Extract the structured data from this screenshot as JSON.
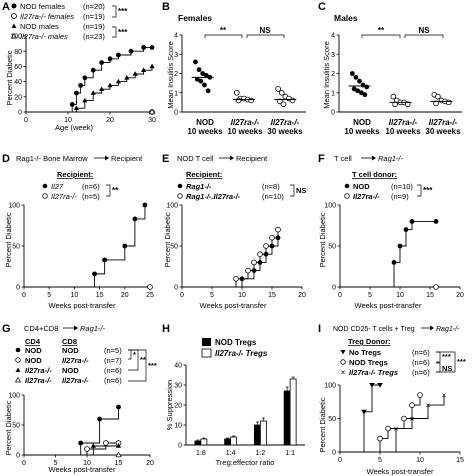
{
  "figure": {
    "panels": {
      "A": {
        "letter": "A",
        "legend": [
          "NOD females",
          "Il27ra-/- females",
          "NOD males",
          "Il27ra-/- males"
        ],
        "legend_n": [
          "(n=20)",
          "(n=19)",
          "(n=19)",
          "(n=23)"
        ],
        "sig": [
          "***",
          "***"
        ],
        "ylabel": "Percent Diabetic",
        "xlabel": "Age (week)"
      },
      "B": {
        "letter": "B",
        "title": "Females",
        "ylabel": "Mean Insulitis Score",
        "groups": [
          [
            "NOD",
            "10 weeks"
          ],
          [
            "Il27ra-/-",
            "10 weeks"
          ],
          [
            "Il27ra-/-",
            "30 weeks"
          ]
        ],
        "sig": [
          "**",
          "NS"
        ]
      },
      "C": {
        "letter": "C",
        "title": "Males",
        "ylabel": "Mean Insulitis Score",
        "groups": [
          [
            "NOD",
            "10 weeks"
          ],
          [
            "Il27ra-/-",
            "10 weeks"
          ],
          [
            "Il27ra-/-",
            "30 weeks"
          ]
        ],
        "sig": [
          "**",
          "NS"
        ]
      },
      "D": {
        "letter": "D",
        "header_a": "Rag1-/- Bone Marrow",
        "header_b": "Recipient",
        "legend_title": "Recipient:",
        "legend": [
          "Il27",
          "Il27ra-/-"
        ],
        "legend_n": [
          "(n=6)",
          "(n=5)"
        ],
        "sig": [
          "**"
        ],
        "ylabel": "Percent Diabetic",
        "xlabel": "Weeks post-transfer"
      },
      "E": {
        "letter": "E",
        "header_a": "NOD T cell",
        "header_b": "Recipient",
        "legend_title": "Recipient:",
        "legend": [
          "Rag1-/-",
          "Rag1-/-.Il27ra-/-"
        ],
        "legend_n": [
          "(n=8)",
          "(n=10)"
        ],
        "sig": [
          "NS"
        ],
        "ylabel": "Percent Diabetic",
        "xlabel": "Weeks post-transfer"
      },
      "F": {
        "letter": "F",
        "header_a": "T cell",
        "header_b": "Rag1-/-",
        "legend_title": "T cell donor:",
        "legend": [
          "NOD",
          "Il27ra-/-"
        ],
        "legend_n": [
          "(n=10)",
          "(n=9)"
        ],
        "sig": [
          "***"
        ],
        "ylabel": "Percent Diabetic",
        "xlabel": "Weeks post-transfer"
      },
      "G": {
        "letter": "G",
        "header_a": "CD4+CD8",
        "header_b": "Rag1-/-",
        "col_headers": [
          "CD4",
          "CD8"
        ],
        "rows": [
          [
            "NOD",
            "NOD"
          ],
          [
            "NOD",
            "Il27ra-/-"
          ],
          [
            "Il27ra-/-",
            "NOD"
          ],
          [
            "Il27ra-/-",
            "Il27ra-/-"
          ]
        ],
        "rows_n": [
          "(n=5)",
          "(n=7)",
          "(n=6)",
          "(n=6)"
        ],
        "sig": [
          "*",
          "**",
          "***"
        ],
        "ylabel": "Percent Diabetic",
        "xlabel": "Weeks post-transfer"
      },
      "H": {
        "letter": "H",
        "legend": [
          "NOD Tregs",
          "Il27ra-/- Tregs"
        ],
        "ylabel": "% Suppression",
        "xlabel": "Treg:effector ratio"
      },
      "I": {
        "letter": "I",
        "header_a": "NOD CD25- T cells + Treg",
        "header_b": "Rag1-/-",
        "legend_title": "Treg Donor:",
        "legend": [
          "No Tregs",
          "NOD Tregs",
          "Il27ra-/- Tregs"
        ],
        "legend_n": [
          "(n=6)",
          "(n=6)",
          "(n=6)"
        ],
        "sig": [
          "***",
          "***",
          "NS"
        ],
        "ylabel": "Percent Diabetic",
        "xlabel": "Weeks post-transfer"
      }
    }
  },
  "chart_data": [
    {
      "panel": "A",
      "type": "line",
      "xlim": [
        0,
        30
      ],
      "ylim": [
        0,
        100
      ],
      "xticks": [
        "0",
        "10",
        "20",
        "30"
      ],
      "yticks": [
        "0",
        "20",
        "40",
        "60",
        "80",
        "100"
      ],
      "series": [
        {
          "name": "NOD females",
          "x": [
            0,
            11,
            12,
            13,
            14,
            16,
            18,
            20,
            22,
            25,
            28,
            30
          ],
          "y": [
            0,
            10,
            25,
            35,
            45,
            55,
            65,
            70,
            75,
            80,
            85,
            85
          ]
        },
        {
          "name": "Il27ra-/- females",
          "x": [
            0,
            30
          ],
          "y": [
            0,
            0
          ]
        },
        {
          "name": "NOD males",
          "x": [
            0,
            12,
            14,
            16,
            18,
            20,
            22,
            24,
            26,
            28,
            30
          ],
          "y": [
            0,
            5,
            15,
            25,
            30,
            35,
            40,
            45,
            50,
            55,
            60
          ]
        },
        {
          "name": "Il27ra-/- males",
          "x": [
            0,
            30
          ],
          "y": [
            0,
            0
          ]
        }
      ]
    },
    {
      "panel": "B",
      "type": "scatter",
      "ylim": [
        0,
        4
      ],
      "yticks": [
        "0",
        "1",
        "2",
        "3",
        "4"
      ],
      "groups": [
        {
          "values": [
            2.6,
            2.2,
            2.0,
            1.9,
            1.8,
            1.7,
            1.6,
            1.4,
            1.1
          ],
          "median": 1.8
        },
        {
          "values": [
            1.0,
            0.7,
            0.7,
            0.65,
            0.6,
            0.6
          ],
          "median": 0.65
        },
        {
          "values": [
            1.2,
            1.0,
            0.8,
            0.7,
            0.6,
            0.55,
            0.4
          ],
          "median": 0.65
        }
      ]
    },
    {
      "panel": "C",
      "type": "scatter",
      "ylim": [
        0,
        4
      ],
      "yticks": [
        "0",
        "1",
        "2",
        "3",
        "4"
      ],
      "groups": [
        {
          "values": [
            2.0,
            1.8,
            1.6,
            1.4,
            1.3,
            1.2,
            1.1,
            1.0,
            0.9
          ],
          "median": 1.35
        },
        {
          "values": [
            0.8,
            0.6,
            0.5,
            0.5,
            0.4,
            0.4
          ],
          "median": 0.5
        },
        {
          "values": [
            0.9,
            0.8,
            0.6,
            0.55,
            0.5,
            0.45
          ],
          "median": 0.55
        }
      ]
    },
    {
      "panel": "D",
      "type": "line",
      "xlim": [
        0,
        25
      ],
      "ylim": [
        0,
        100
      ],
      "xticks": [
        "0",
        "5",
        "10",
        "15",
        "20",
        "25"
      ],
      "yticks": [
        "0",
        "50",
        "100"
      ],
      "series": [
        {
          "name": "Il27",
          "x": [
            0,
            14,
            16,
            20,
            22,
            24
          ],
          "y": [
            0,
            16,
            33,
            50,
            83,
            100
          ]
        },
        {
          "name": "Il27ra-/-",
          "x": [
            0,
            25
          ],
          "y": [
            0,
            0
          ]
        }
      ]
    },
    {
      "panel": "E",
      "type": "line",
      "xlim": [
        0,
        20
      ],
      "ylim": [
        0,
        100
      ],
      "xticks": [
        "0",
        "5",
        "10",
        "15",
        "20"
      ],
      "yticks": [
        "0",
        "50",
        "100"
      ],
      "series": [
        {
          "name": "Rag1-/-",
          "x": [
            0,
            10,
            12,
            13,
            14,
            15,
            16
          ],
          "y": [
            0,
            10,
            20,
            30,
            40,
            50,
            60
          ]
        },
        {
          "name": "Rag1-/-.Il27ra-/-",
          "x": [
            0,
            9,
            11,
            12,
            13,
            14,
            15,
            16
          ],
          "y": [
            0,
            10,
            20,
            30,
            40,
            50,
            60,
            70
          ]
        }
      ]
    },
    {
      "panel": "F",
      "type": "line",
      "xlim": [
        0,
        20
      ],
      "ylim": [
        0,
        100
      ],
      "xticks": [
        "0",
        "5",
        "10",
        "15",
        "20"
      ],
      "yticks": [
        "0",
        "50",
        "100"
      ],
      "series": [
        {
          "name": "NOD",
          "x": [
            0,
            9,
            10,
            11,
            12,
            16
          ],
          "y": [
            0,
            30,
            50,
            70,
            80,
            80
          ]
        },
        {
          "name": "Il27ra-/-",
          "x": [
            0,
            16
          ],
          "y": [
            0,
            0
          ]
        }
      ]
    },
    {
      "panel": "G",
      "type": "line",
      "xlim": [
        0,
        20
      ],
      "ylim": [
        0,
        100
      ],
      "xticks": [
        "0",
        "5",
        "10",
        "15",
        "20"
      ],
      "yticks": [
        "0",
        "50",
        "100"
      ],
      "series": [
        {
          "name": "NOD / NOD",
          "x": [
            0,
            9,
            12,
            15
          ],
          "y": [
            0,
            20,
            60,
            80
          ]
        },
        {
          "name": "NOD / Il27ra-/-",
          "x": [
            0,
            10,
            13,
            15
          ],
          "y": [
            0,
            10,
            20,
            20
          ]
        },
        {
          "name": "Il27ra-/- / NOD",
          "x": [
            0,
            11,
            15
          ],
          "y": [
            0,
            15,
            15
          ]
        },
        {
          "name": "Il27ra-/- / Il27ra-/-",
          "x": [
            0,
            15
          ],
          "y": [
            0,
            0
          ]
        }
      ]
    },
    {
      "panel": "H",
      "type": "bar",
      "categories": [
        "1:8",
        "1:4",
        "1:2",
        "1:1"
      ],
      "ylim": [
        0,
        40
      ],
      "yticks": [
        "0",
        "10",
        "20",
        "30",
        "40"
      ],
      "series": [
        {
          "name": "NOD Tregs",
          "values": [
            2,
            3,
            10,
            27
          ],
          "errors": [
            0.5,
            0.5,
            1.5,
            2
          ]
        },
        {
          "name": "Il27ra-/- Tregs",
          "values": [
            3,
            4,
            12,
            33
          ],
          "errors": [
            0.5,
            0.5,
            1.5,
            1
          ]
        }
      ]
    },
    {
      "panel": "I",
      "type": "line",
      "xlim": [
        0,
        15
      ],
      "ylim": [
        0,
        100
      ],
      "xticks": [
        "0",
        "5",
        "10",
        "15"
      ],
      "yticks": [
        "0",
        "50",
        "100"
      ],
      "series": [
        {
          "name": "No Tregs",
          "x": [
            0,
            3,
            4,
            5
          ],
          "y": [
            0,
            60,
            100,
            100
          ]
        },
        {
          "name": "NOD Tregs",
          "x": [
            0,
            5,
            6,
            8,
            9,
            10
          ],
          "y": [
            0,
            20,
            35,
            50,
            70,
            85
          ]
        },
        {
          "name": "Il27ra-/- Tregs",
          "x": [
            0,
            7,
            9,
            11,
            13
          ],
          "y": [
            0,
            35,
            50,
            70,
            85
          ]
        }
      ]
    }
  ]
}
